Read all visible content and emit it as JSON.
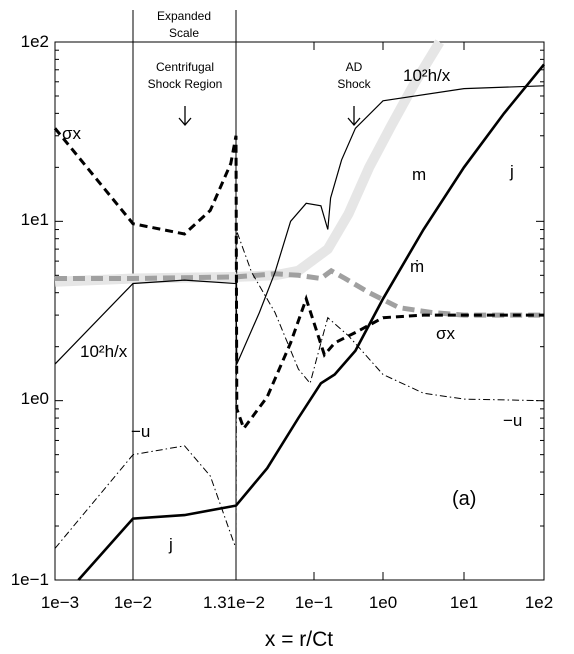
{
  "chart_data": {
    "type": "line",
    "xlabel": "x = r/Ct",
    "x_tick_labels": [
      "1e−3",
      "1e−2",
      "1.31e−2",
      "1e−1",
      "1e0",
      "1e1",
      "1e2"
    ],
    "y_tick_labels": [
      "1e−1",
      "1e0",
      "1e1",
      "1e2"
    ],
    "y_scale": "log",
    "ylim": [
      0.1,
      100
    ],
    "annotations": {
      "expanded_scale": [
        "Expanded",
        "Scale"
      ],
      "centrifugal_shock": [
        "Centrifugal",
        "Shock Region"
      ],
      "ad_shock": [
        "AD",
        "Shock"
      ],
      "panel": "(a)"
    },
    "series": [
      {
        "label_top": "10²h/x",
        "label_bottom": "10²h/x",
        "values": [
          [
            0,
            1.6
          ],
          [
            1,
            4.5
          ],
          [
            1.5,
            4.7
          ],
          [
            2,
            4.5
          ],
          [
            2.01,
            1.6
          ],
          [
            2.3,
            3.1
          ],
          [
            2.5,
            5.2
          ],
          [
            2.7,
            10
          ],
          [
            2.9,
            12.6
          ],
          [
            3.1,
            12.2
          ],
          [
            3.2,
            9
          ],
          [
            3.24,
            13.5
          ],
          [
            3.4,
            22
          ],
          [
            3.6,
            33
          ],
          [
            4,
            47
          ],
          [
            5,
            55
          ],
          [
            6,
            57
          ]
        ]
      },
      {
        "label": "m",
        "values": [
          [
            0,
            4.6
          ],
          [
            1,
            4.8
          ],
          [
            2,
            4.9
          ],
          [
            2.5,
            5
          ],
          [
            2.8,
            5.3
          ],
          [
            3.2,
            7
          ],
          [
            3.5,
            11
          ],
          [
            3.8,
            20
          ],
          [
            4.1,
            34
          ],
          [
            4.4,
            60
          ],
          [
            4.7,
            100
          ]
        ]
      },
      {
        "label": "ṁ",
        "values": [
          [
            0,
            4.8
          ],
          [
            1,
            4.8
          ],
          [
            2,
            4.9
          ],
          [
            2.5,
            5.1
          ],
          [
            2.8,
            5.0
          ],
          [
            3.1,
            4.8
          ],
          [
            3.25,
            5.3
          ],
          [
            3.45,
            4.8
          ],
          [
            3.8,
            4.0
          ],
          [
            4.2,
            3.3
          ],
          [
            4.6,
            3.1
          ],
          [
            5,
            3.0
          ],
          [
            6,
            3.0
          ]
        ]
      },
      {
        "label_top": "σx",
        "label_bottom": "σx",
        "values": [
          [
            0,
            33
          ],
          [
            1,
            9.7
          ],
          [
            1.5,
            8.5
          ],
          [
            1.75,
            11.5
          ],
          [
            1.95,
            21
          ],
          [
            2,
            30
          ],
          [
            2.01,
            0.9
          ],
          [
            2.1,
            0.7
          ],
          [
            2.4,
            1.05
          ],
          [
            2.7,
            2.1
          ],
          [
            2.9,
            3.7
          ],
          [
            3.15,
            1.8
          ],
          [
            3.3,
            2.1
          ],
          [
            3.6,
            2.4
          ],
          [
            4,
            2.9
          ],
          [
            4.5,
            3.0
          ],
          [
            5,
            3.0
          ],
          [
            6,
            3.0
          ]
        ]
      },
      {
        "label_top": "−u",
        "label_bottom": "−u",
        "values": [
          [
            0,
            0.15
          ],
          [
            1,
            0.5
          ],
          [
            1.5,
            0.56
          ],
          [
            1.75,
            0.38
          ],
          [
            1.95,
            0.18
          ],
          [
            2,
            0.15
          ],
          [
            2.01,
            8.8
          ],
          [
            2.2,
            5.2
          ],
          [
            2.5,
            3.1
          ],
          [
            2.8,
            1.5
          ],
          [
            2.95,
            1.25
          ],
          [
            3.1,
            2.1
          ],
          [
            3.2,
            2.9
          ],
          [
            3.5,
            2.3
          ],
          [
            4,
            1.4
          ],
          [
            4.5,
            1.1
          ],
          [
            5,
            1.02
          ],
          [
            6,
            1.0
          ]
        ]
      },
      {
        "label_top": "j",
        "label_bottom": "j",
        "values": [
          [
            0.3,
            0.1
          ],
          [
            1,
            0.22
          ],
          [
            1.5,
            0.23
          ],
          [
            2,
            0.26
          ],
          [
            2.4,
            0.42
          ],
          [
            2.8,
            0.8
          ],
          [
            3.1,
            1.25
          ],
          [
            3.3,
            1.4
          ],
          [
            3.6,
            1.9
          ],
          [
            4,
            3.7
          ],
          [
            4.5,
            9
          ],
          [
            5,
            20
          ],
          [
            5.5,
            40
          ],
          [
            6,
            75
          ]
        ]
      }
    ],
    "colors": {
      "m_line": "#e6e6e6",
      "mdot_line": "#a0a0a0",
      "main": "#000000"
    },
    "grid": "off"
  }
}
